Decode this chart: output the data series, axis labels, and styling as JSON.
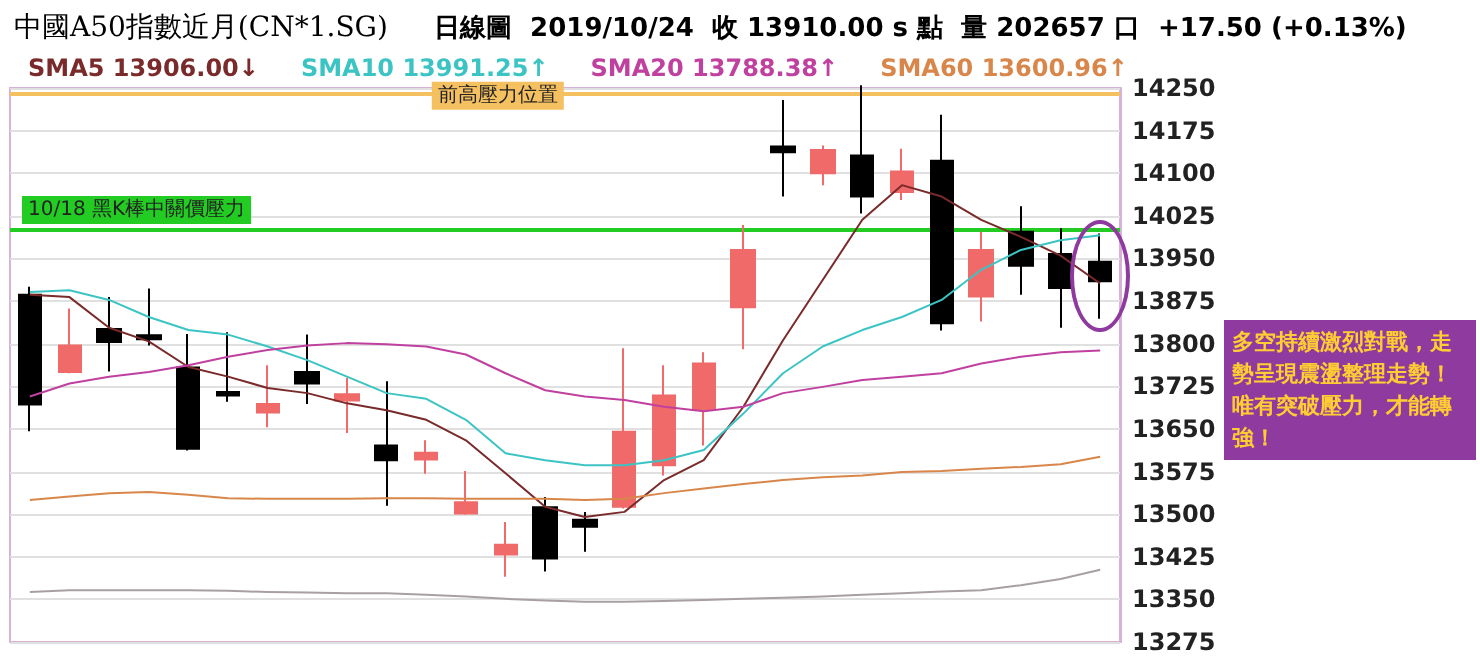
{
  "chart_data": {
    "type": "candlestick",
    "title": "中國A50指數近月(CN*1.SG)",
    "subtitle": "日線圖  2019/10/24  收 13910.00 s 點  量 202657 口  +17.50 (+0.13%)",
    "categories": [
      null,
      null,
      null,
      null,
      null,
      null,
      null,
      null,
      null,
      null,
      null,
      null,
      null,
      null,
      null,
      null,
      null,
      null,
      null,
      null,
      null,
      null,
      null,
      null,
      null,
      null,
      null,
      null
    ],
    "series": [
      {
        "colors": [
          "#000000",
          "#f06a6a",
          "#000000",
          "#000000",
          "#000000",
          "#000000",
          "#f06a6a",
          "#000000",
          "#f06a6a",
          "#000000",
          "#f06a6a",
          "#f06a6a",
          "#f06a6a",
          "#000000",
          "#000000",
          "#f06a6a",
          "#f06a6a",
          "#f06a6a",
          "#f06a6a",
          "#000000",
          "#f06a6a",
          "#000000",
          "#f06a6a",
          "#000000",
          "#f06a6a",
          "#000000",
          "#000000",
          "#000000"
        ],
        "ohlc": [
          [
            13886,
            13900,
            13646,
            13693
          ],
          [
            13750,
            13862,
            13748,
            13797
          ],
          [
            13826,
            13882,
            13751,
            13803
          ],
          [
            13815,
            13897,
            13797,
            13808
          ],
          [
            13758,
            13817,
            13612,
            13615
          ],
          [
            13715,
            13820,
            13698,
            13709
          ],
          [
            13679,
            13762,
            13653,
            13694
          ],
          [
            13750,
            13816,
            13694,
            13730
          ],
          [
            13700,
            13740,
            13643,
            13711
          ],
          [
            13621,
            13734,
            13515,
            13595
          ],
          [
            13596,
            13630,
            13571,
            13608
          ],
          [
            13501,
            13576,
            13499,
            13521
          ],
          [
            13429,
            13486,
            13390,
            13446
          ],
          [
            13512,
            13530,
            13399,
            13422
          ],
          [
            13490,
            13504,
            13434,
            13478
          ],
          [
            13513,
            13792,
            13510,
            13645
          ],
          [
            13586,
            13762,
            13568,
            13709
          ],
          [
            13684,
            13785,
            13621,
            13765
          ],
          [
            13864,
            14009,
            13790,
            13965
          ],
          [
            14147,
            14229,
            14059,
            14137
          ],
          [
            14100,
            14149,
            14079,
            14141
          ],
          [
            14131,
            14255,
            14029,
            14059
          ],
          [
            14067,
            14143,
            14053,
            14103
          ],
          [
            14122,
            14203,
            13823,
            13836
          ],
          [
            13883,
            13997,
            13839,
            13965
          ],
          [
            13997,
            14042,
            13886,
            13937
          ],
          [
            13958,
            14003,
            13828,
            13898
          ],
          [
            13944,
            13994,
            13844,
            13910
          ]
        ]
      },
      {
        "type": "line",
        "name": "SMA5 13906.00↓",
        "color": "#7a2a2a",
        "values": [
          13886,
          13882,
          13828,
          13804,
          13759,
          13742,
          13722,
          13713,
          13695,
          13683,
          13666,
          13630,
          13572,
          13513,
          13495,
          13504,
          13560,
          13595,
          13689,
          13806,
          13912,
          14018,
          14079,
          14059,
          14018,
          13988,
          13955,
          13906
        ]
      },
      {
        "type": "line",
        "name": "SMA10 13991.25↑",
        "color": "#3cc4c4",
        "values": [
          13891,
          13894,
          13877,
          13847,
          13824,
          13816,
          13795,
          13771,
          13742,
          13713,
          13703,
          13666,
          13607,
          13595,
          13586,
          13586,
          13595,
          13613,
          13677,
          13748,
          13795,
          13824,
          13847,
          13877,
          13930,
          13965,
          13982,
          13991
        ]
      },
      {
        "type": "line",
        "name": "SMA20 13788.38↑",
        "color": "#c040a0",
        "values": [
          13707,
          13730,
          13742,
          13750,
          13762,
          13777,
          13789,
          13797,
          13801,
          13799,
          13795,
          13781,
          13748,
          13718,
          13707,
          13701,
          13689,
          13681,
          13689,
          13713,
          13724,
          13736,
          13742,
          13748,
          13765,
          13777,
          13785,
          13788
        ]
      },
      {
        "type": "line",
        "name": "SMA60 13600.96↑",
        "color": "#d8864a",
        "values": [
          13525,
          13531,
          13537,
          13539,
          13534,
          13528,
          13527,
          13527,
          13527,
          13528,
          13528,
          13527,
          13527,
          13527,
          13525,
          13527,
          13537,
          13545,
          13553,
          13560,
          13565,
          13568,
          13574,
          13576,
          13580,
          13583,
          13588,
          13601
        ]
      },
      {
        "type": "line",
        "color": "#a8a0a0",
        "values": [
          13363,
          13366,
          13366,
          13366,
          13366,
          13365,
          13363,
          13362,
          13361,
          13361,
          13358,
          13355,
          13351,
          13348,
          13346,
          13346,
          13347,
          13349,
          13351,
          13353,
          13355,
          13358,
          13361,
          13364,
          13366,
          13375,
          13386,
          13402
        ]
      }
    ],
    "ylim": [
      13275,
      14250
    ],
    "yticks": [
      13275,
      13350,
      13425,
      13500,
      13575,
      13650,
      13725,
      13800,
      13875,
      13950,
      14025,
      14100,
      14175,
      14250
    ],
    "grid": "y",
    "legend": "top left",
    "marker": "none",
    "tick_labels": "y",
    "ref_lines": [
      {
        "axis": "y",
        "value": 14240,
        "label": "前高壓力位置",
        "color": "#f5c060"
      },
      {
        "axis": "y",
        "value": 14000,
        "label": "10/18 黑K棒中關價壓力",
        "color": "#22cc22"
      }
    ],
    "annotations": [
      "多空持續激烈對戰，走勢呈現震盪整理走勢！唯有突破壓力，才能轉強！"
    ]
  }
}
